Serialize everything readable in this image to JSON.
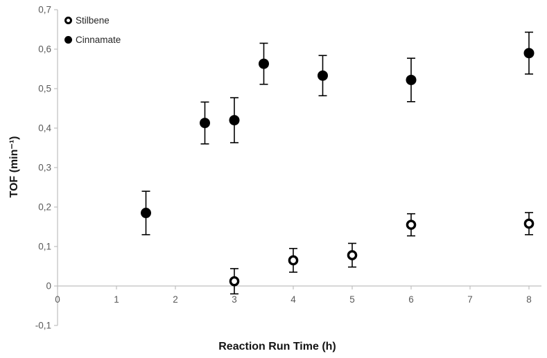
{
  "chart_data": {
    "type": "scatter",
    "xlabel": "Reaction Run Time (h)",
    "ylabel": "TOF (min⁻¹)",
    "grid": false,
    "legend_position": "top-left-inside",
    "decimal_separator": ",",
    "style": {
      "axis_color": "#bfbfbf",
      "tick_label_color": "#595959",
      "marker_color": "#000000",
      "background": "#ffffff"
    },
    "x_axis": {
      "min": 0,
      "max": 8,
      "tick_values": [
        0,
        1,
        2,
        3,
        4,
        5,
        6,
        7,
        8
      ],
      "tick_labels": [
        "0",
        "1",
        "2",
        "3",
        "4",
        "5",
        "6",
        "7",
        "8"
      ]
    },
    "y_axis": {
      "min": -0.1,
      "max": 0.7,
      "tick_values": [
        0.7,
        0.6,
        0.5,
        0.4,
        0.3,
        0.2,
        0.1,
        0,
        -0.1
      ],
      "tick_labels": [
        "0,7",
        "0,6",
        "0,5",
        "0,4",
        "0,3",
        "0,2",
        "0,1",
        "0",
        "-0,1"
      ]
    },
    "series": [
      {
        "name": "Stilbene",
        "marker": "circle-open",
        "color": "#000000",
        "points": [
          {
            "x": 3,
            "y": 0.012,
            "err": 0.032
          },
          {
            "x": 4,
            "y": 0.065,
            "err": 0.03
          },
          {
            "x": 5,
            "y": 0.078,
            "err": 0.03
          },
          {
            "x": 6,
            "y": 0.155,
            "err": 0.028
          },
          {
            "x": 8,
            "y": 0.158,
            "err": 0.028
          }
        ]
      },
      {
        "name": "Cinnamate",
        "marker": "circle-filled",
        "color": "#000000",
        "points": [
          {
            "x": 1.5,
            "y": 0.185,
            "err": 0.055
          },
          {
            "x": 2.5,
            "y": 0.413,
            "err": 0.053
          },
          {
            "x": 3,
            "y": 0.42,
            "err": 0.057
          },
          {
            "x": 3.5,
            "y": 0.563,
            "err": 0.052
          },
          {
            "x": 4.5,
            "y": 0.533,
            "err": 0.051
          },
          {
            "x": 6,
            "y": 0.522,
            "err": 0.055
          },
          {
            "x": 8,
            "y": 0.59,
            "err": 0.053
          }
        ]
      }
    ]
  }
}
